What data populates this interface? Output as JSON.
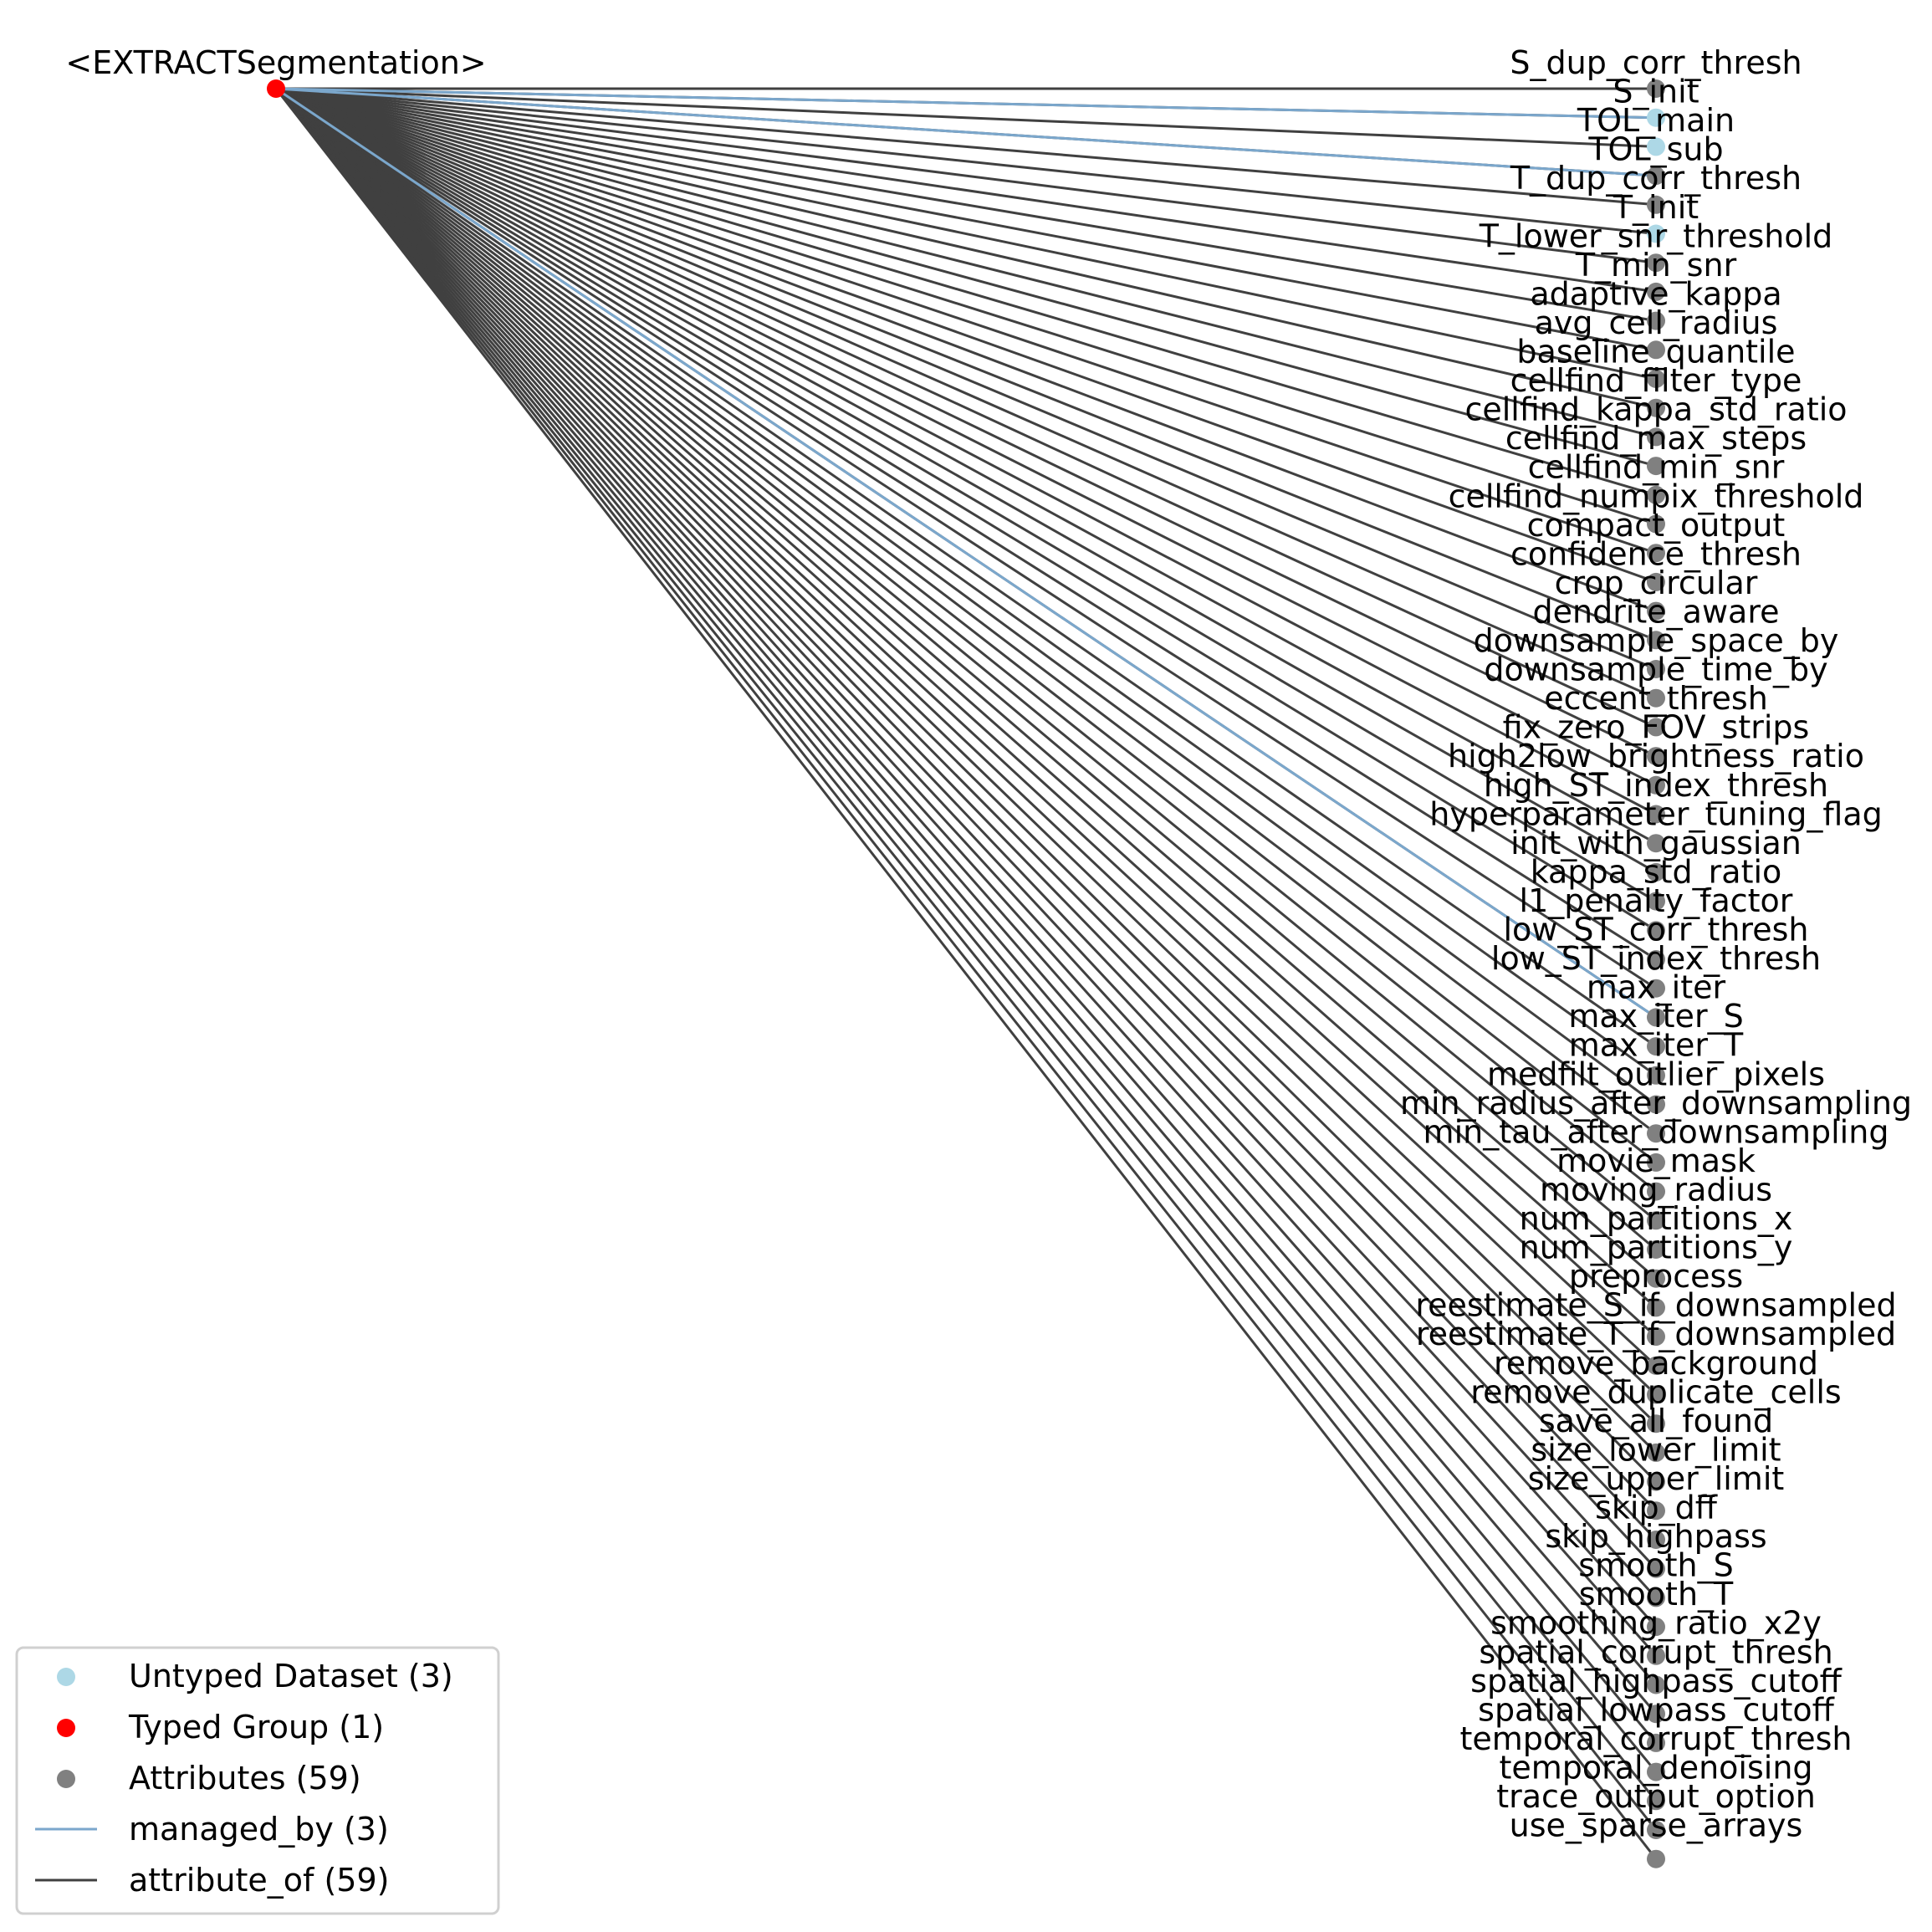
{
  "graph": {
    "root": {
      "label": "<EXTRACTSegmentation>",
      "type": "Typed Group",
      "color": "#ff0000"
    },
    "attributes": [
      "S_dup_corr_thresh",
      "S_init",
      "TOL_main",
      "TOL_sub",
      "T_dup_corr_thresh",
      "T_init",
      "T_lower_snr_threshold",
      "T_min_snr",
      "adaptive_kappa",
      "avg_cell_radius",
      "baseline_quantile",
      "cellfind_filter_type",
      "cellfind_kappa_std_ratio",
      "cellfind_max_steps",
      "cellfind_min_snr",
      "cellfind_numpix_threshold",
      "compact_output",
      "confidence_thresh",
      "crop_circular",
      "dendrite_aware",
      "downsample_space_by",
      "downsample_time_by",
      "eccent_thresh",
      "fix_zero_FOV_strips",
      "high2low_brightness_ratio",
      "high_ST_index_thresh",
      "hyperparameter_tuning_flag",
      "init_with_gaussian",
      "kappa_std_ratio",
      "l1_penalty_factor",
      "low_ST_corr_thresh",
      "low_ST_index_thresh",
      "max_iter",
      "max_iter_S",
      "max_iter_T",
      "medfilt_outlier_pixels",
      "min_radius_after_downsampling",
      "min_tau_after_downsampling",
      "movie_mask",
      "moving_radius",
      "num_partitions_x",
      "num_partitions_y",
      "preprocess",
      "reestimate_S_if_downsampled",
      "reestimate_T_if_downsampled",
      "remove_background",
      "remove_duplicate_cells",
      "save_all_found",
      "size_lower_limit",
      "size_upper_limit",
      "skip_dff",
      "skip_highpass",
      "smooth_S",
      "smooth_T",
      "smoothing_ratio_x2y",
      "spatial_corrupt_thresh",
      "spatial_highpass_cutoff",
      "spatial_lowpass_cutoff",
      "temporal_corrupt_thresh",
      "temporal_denoising",
      "trace_output_option",
      "use_sparse_arrays"
    ],
    "untyped_datasets": [
      "S_init",
      "TOL_main",
      "T_init"
    ],
    "colors": {
      "untyped_dataset": "#add8e6",
      "typed_group": "#ff0000",
      "attribute": "#808080",
      "managed_by": "#7ba7cc",
      "attribute_of": "#404040"
    }
  },
  "legend": {
    "items": [
      {
        "kind": "marker",
        "color": "#add8e6",
        "label": "Untyped Dataset (3)"
      },
      {
        "kind": "marker",
        "color": "#ff0000",
        "label": "Typed Group (1)"
      },
      {
        "kind": "marker",
        "color": "#808080",
        "label": "Attributes (59)"
      },
      {
        "kind": "line",
        "color": "#7ba7cc",
        "label": "managed_by (3)"
      },
      {
        "kind": "line",
        "color": "#404040",
        "label": "attribute_of (59)"
      }
    ]
  }
}
